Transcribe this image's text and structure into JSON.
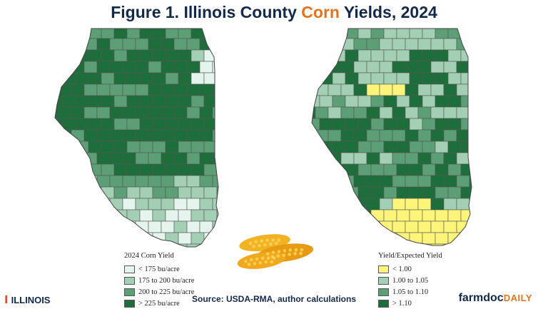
{
  "title": {
    "prefix": "Figure 1. Illinois County ",
    "highlight": "Corn",
    "suffix": " Yields, 2024"
  },
  "colors": {
    "title": "#13294b",
    "accent": "#e5731a",
    "light": "#e6f4ee",
    "mid_light": "#a3d0b4",
    "mid_dark": "#5c9e75",
    "dark": "#1e6e3c",
    "yellow": "#fdf57a"
  },
  "legend_left": {
    "title": "2024 Corn Yield",
    "items": [
      {
        "label": "< 175 bu/acre",
        "color": "#e6f4ee"
      },
      {
        "label": "175 to 200 bu/acre",
        "color": "#a3d0b4"
      },
      {
        "label": "200 to 225 bu/acre",
        "color": "#5c9e75"
      },
      {
        "label": "> 225 bu/acre",
        "color": "#1e6e3c"
      }
    ]
  },
  "legend_right": {
    "title": "Yield/Expected Yield",
    "items": [
      {
        "label": "< 1.00",
        "color": "#fdf57a"
      },
      {
        "label": "1.00 to 1.05",
        "color": "#a3d0b4"
      },
      {
        "label": "1.05 to 1.10",
        "color": "#5c9e75"
      },
      {
        "label": "> 1.10",
        "color": "#1e6e3c"
      }
    ]
  },
  "footer": {
    "left_logo": "ILLINOIS",
    "left_logo_mark": "I",
    "source": "Source: USDA-RMA, author calculations",
    "brand_a": "farmdoc",
    "brand_b": "DAILY"
  },
  "icons": {
    "corn": "corn-cobs-image"
  }
}
